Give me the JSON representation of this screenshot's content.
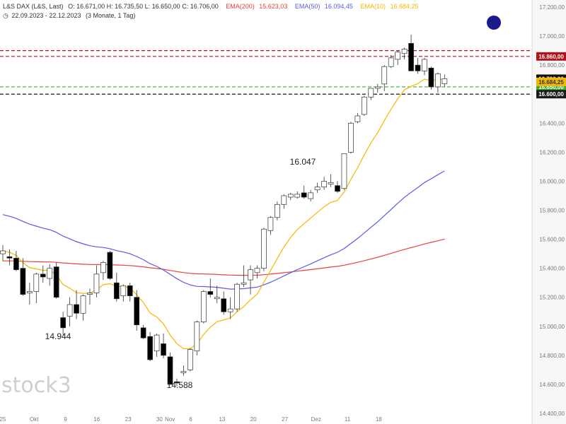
{
  "header": {
    "instrument": "L&S DAX (L&S, Last)",
    "ohlc": "O: 16.671,00  H: 16.735,50  L: 16.650,00  C: 16.706,00",
    "ema200_label": "EMA(200)",
    "ema200_value": "15.623,03",
    "ema50_label": "EMA(50)",
    "ema50_value": "16.094,45",
    "ema10_label": "EMA(10)",
    "ema10_value": "16.684,25",
    "range": "22.09.2023 - 22.12.2023",
    "interval": "(3 Monate, 1 Tag)"
  },
  "colors": {
    "ema200": "#e8413c",
    "ema50": "#5a5ae6",
    "ema10": "#f5b800",
    "resistance": "#b3121a",
    "support_green": "#3fae2a",
    "support_black": "#1a1a1a",
    "price_tag": "#111111",
    "watermark": "#cfcfcf",
    "dot": "#1a1a8c"
  },
  "watermark": "stock3",
  "annotations": [
    {
      "text": "16.047",
      "for": "swing-high"
    },
    {
      "text": "14.944",
      "for": "swing-low-1"
    },
    {
      "text": "14.588",
      "for": "swing-low-2"
    }
  ],
  "chart_data": {
    "type": "candlestick",
    "ylim": [
      14400,
      17200
    ],
    "y_ticks": [
      "14.400,00",
      "14.600,00",
      "14.800,00",
      "15.000,00",
      "15.200,00",
      "15.400,00",
      "15.600,00",
      "15.800,00",
      "16.000,00",
      "16.200,00",
      "16.400,00",
      "16.600,00",
      "16.800,00",
      "17.000,00",
      "17.200,00"
    ],
    "x_labels": [
      "25",
      "Okt",
      "9",
      "16",
      "23",
      "30",
      "Nov",
      "6",
      "13",
      "20",
      "27",
      "Dez",
      "11",
      "18"
    ],
    "x_label_slots": [
      0,
      9,
      18,
      27,
      36,
      45,
      48,
      54,
      63,
      72,
      81,
      90,
      99,
      108
    ],
    "price_levels": [
      {
        "label": "16.860,00",
        "value": 16860,
        "style": "resistance"
      },
      {
        "label": "16.900,00",
        "value": 16900,
        "style": "resistance",
        "hidden_tag": true
      },
      {
        "label": "16.650,00",
        "value": 16650,
        "style": "support_green"
      },
      {
        "label": "16.600,00",
        "value": 16600,
        "style": "support_black"
      }
    ],
    "last_price_label": "16.706,00",
    "last_price": 16706,
    "ema_tags": [
      {
        "label": "16.684,25",
        "value": 16684.25,
        "series": "ema10"
      }
    ],
    "candles": [
      {
        "o": 15500,
        "h": 15560,
        "l": 15450,
        "c": 15520
      },
      {
        "o": 15480,
        "h": 15530,
        "l": 15420,
        "c": 15470
      },
      {
        "o": 15470,
        "h": 15520,
        "l": 15380,
        "c": 15390
      },
      {
        "o": 15400,
        "h": 15470,
        "l": 15210,
        "c": 15220
      },
      {
        "o": 15230,
        "h": 15300,
        "l": 15150,
        "c": 15240
      },
      {
        "o": 15240,
        "h": 15370,
        "l": 15160,
        "c": 15360
      },
      {
        "o": 15360,
        "h": 15420,
        "l": 15300,
        "c": 15340
      },
      {
        "o": 15330,
        "h": 15430,
        "l": 15280,
        "c": 15400
      },
      {
        "o": 15410,
        "h": 15440,
        "l": 15190,
        "c": 15200
      },
      {
        "o": 15060,
        "h": 15100,
        "l": 14940,
        "c": 14990
      },
      {
        "o": 15070,
        "h": 15200,
        "l": 15000,
        "c": 15150
      },
      {
        "o": 15150,
        "h": 15250,
        "l": 15050,
        "c": 15090
      },
      {
        "o": 15090,
        "h": 15220,
        "l": 15040,
        "c": 15210
      },
      {
        "o": 15220,
        "h": 15260,
        "l": 15150,
        "c": 15230
      },
      {
        "o": 15230,
        "h": 15420,
        "l": 15200,
        "c": 15360
      },
      {
        "o": 15370,
        "h": 15450,
        "l": 15320,
        "c": 15440
      },
      {
        "o": 15510,
        "h": 15520,
        "l": 15320,
        "c": 15330
      },
      {
        "o": 15300,
        "h": 15370,
        "l": 15170,
        "c": 15190
      },
      {
        "o": 15210,
        "h": 15290,
        "l": 15170,
        "c": 15280
      },
      {
        "o": 15280,
        "h": 15300,
        "l": 15170,
        "c": 15210
      },
      {
        "o": 15200,
        "h": 15250,
        "l": 14970,
        "c": 15010
      },
      {
        "o": 14990,
        "h": 15010,
        "l": 14910,
        "c": 14920
      },
      {
        "o": 14930,
        "h": 14960,
        "l": 14760,
        "c": 14770
      },
      {
        "o": 14830,
        "h": 14950,
        "l": 14790,
        "c": 14940
      },
      {
        "o": 14880,
        "h": 14950,
        "l": 14780,
        "c": 14800
      },
      {
        "o": 14790,
        "h": 14820,
        "l": 14600,
        "c": 14600
      },
      {
        "o": 14618,
        "h": 14640,
        "l": 14588,
        "c": 14610
      },
      {
        "o": 14680,
        "h": 14730,
        "l": 14660,
        "c": 14690
      },
      {
        "o": 14700,
        "h": 14850,
        "l": 14690,
        "c": 14840
      },
      {
        "o": 14830,
        "h": 15040,
        "l": 14800,
        "c": 15030
      },
      {
        "o": 15030,
        "h": 15250,
        "l": 15020,
        "c": 15240
      },
      {
        "o": 15240,
        "h": 15330,
        "l": 15200,
        "c": 15220
      },
      {
        "o": 15190,
        "h": 15280,
        "l": 15160,
        "c": 15200
      },
      {
        "o": 15190,
        "h": 15240,
        "l": 15080,
        "c": 15100
      },
      {
        "o": 15100,
        "h": 15200,
        "l": 15050,
        "c": 15120
      },
      {
        "o": 15120,
        "h": 15300,
        "l": 15100,
        "c": 15290
      },
      {
        "o": 15290,
        "h": 15420,
        "l": 15270,
        "c": 15300
      },
      {
        "o": 15320,
        "h": 15420,
        "l": 15220,
        "c": 15390
      },
      {
        "o": 15370,
        "h": 15420,
        "l": 15330,
        "c": 15400
      },
      {
        "o": 15400,
        "h": 15680,
        "l": 15380,
        "c": 15670
      },
      {
        "o": 15660,
        "h": 15760,
        "l": 15630,
        "c": 15750
      },
      {
        "o": 15750,
        "h": 15860,
        "l": 15730,
        "c": 15840
      },
      {
        "o": 15840,
        "h": 15910,
        "l": 15810,
        "c": 15900
      },
      {
        "o": 15890,
        "h": 15920,
        "l": 15870,
        "c": 15910
      },
      {
        "o": 15890,
        "h": 15930,
        "l": 15880,
        "c": 15910
      },
      {
        "o": 15920,
        "h": 15970,
        "l": 15880,
        "c": 15890
      },
      {
        "o": 15880,
        "h": 15940,
        "l": 15860,
        "c": 15920
      },
      {
        "o": 15940,
        "h": 15990,
        "l": 15920,
        "c": 15960
      },
      {
        "o": 15960,
        "h": 16030,
        "l": 15940,
        "c": 16000
      },
      {
        "o": 15980,
        "h": 16047,
        "l": 15960,
        "c": 15990
      },
      {
        "o": 15970,
        "h": 16000,
        "l": 15920,
        "c": 15930
      },
      {
        "o": 15950,
        "h": 16190,
        "l": 15940,
        "c": 16190
      },
      {
        "o": 16200,
        "h": 16410,
        "l": 16190,
        "c": 16400
      },
      {
        "o": 16410,
        "h": 16470,
        "l": 16400,
        "c": 16450
      },
      {
        "o": 16460,
        "h": 16590,
        "l": 16450,
        "c": 16580
      },
      {
        "o": 16580,
        "h": 16640,
        "l": 16560,
        "c": 16640
      },
      {
        "o": 16640,
        "h": 16670,
        "l": 16610,
        "c": 16650
      },
      {
        "o": 16670,
        "h": 16800,
        "l": 16620,
        "c": 16790
      },
      {
        "o": 16790,
        "h": 16870,
        "l": 16780,
        "c": 16850
      },
      {
        "o": 16840,
        "h": 16900,
        "l": 16800,
        "c": 16890
      },
      {
        "o": 16880,
        "h": 16920,
        "l": 16840,
        "c": 16910
      },
      {
        "o": 16950,
        "h": 17010,
        "l": 16760,
        "c": 16760
      },
      {
        "o": 16800,
        "h": 16850,
        "l": 16740,
        "c": 16760
      },
      {
        "o": 16760,
        "h": 16850,
        "l": 16730,
        "c": 16840
      },
      {
        "o": 16780,
        "h": 16790,
        "l": 16630,
        "c": 16650
      },
      {
        "o": 16650,
        "h": 16750,
        "l": 16610,
        "c": 16740
      },
      {
        "o": 16671,
        "h": 16735.5,
        "l": 16650,
        "c": 16706
      }
    ]
  }
}
